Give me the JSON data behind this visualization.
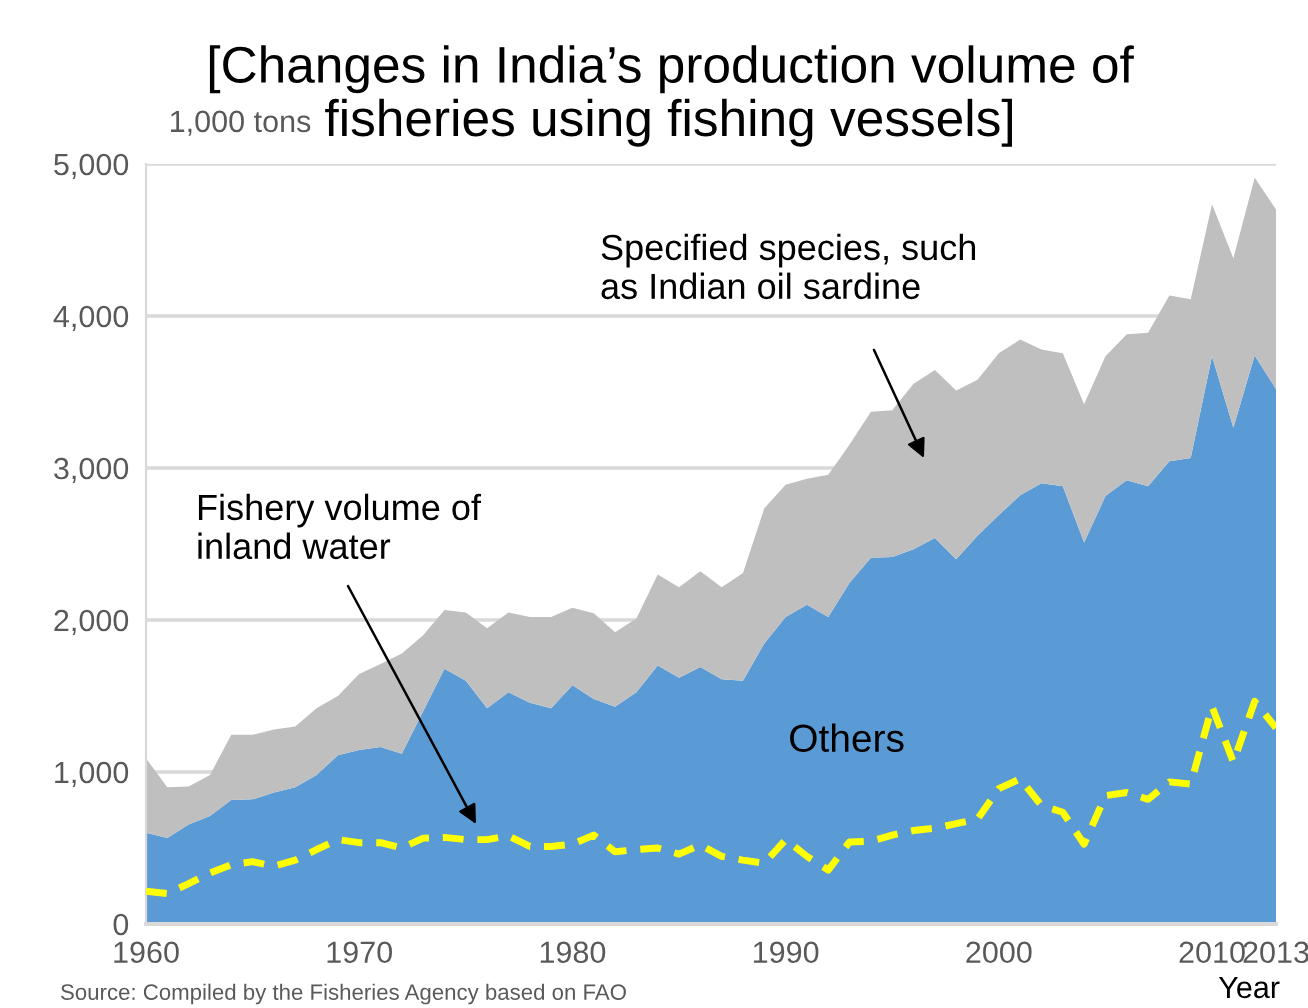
{
  "chart_data": {
    "type": "area",
    "title": "[Changes in India’s production volume of\nfisheries using fishing vessels]",
    "ylabel": "1,000 tons",
    "xlabel": "Year",
    "stacked": true,
    "x": [
      1960,
      1961,
      1962,
      1963,
      1964,
      1965,
      1966,
      1967,
      1968,
      1969,
      1970,
      1971,
      1972,
      1973,
      1974,
      1975,
      1976,
      1977,
      1978,
      1979,
      1980,
      1981,
      1982,
      1983,
      1984,
      1985,
      1986,
      1987,
      1988,
      1989,
      1990,
      1991,
      1992,
      1993,
      1994,
      1995,
      1996,
      1997,
      1998,
      1999,
      2000,
      2001,
      2002,
      2003,
      2004,
      2005,
      2006,
      2007,
      2008,
      2009,
      2010,
      2011,
      2012,
      2013
    ],
    "series": [
      {
        "name": "Others",
        "color": "#5b9bd5",
        "values": [
          600,
          565,
          655,
          710,
          815,
          820,
          865,
          900,
          980,
          1110,
          1145,
          1165,
          1120,
          1400,
          1680,
          1600,
          1420,
          1525,
          1455,
          1420,
          1570,
          1480,
          1430,
          1525,
          1700,
          1620,
          1690,
          1610,
          1600,
          1845,
          2020,
          2100,
          2020,
          2245,
          2410,
          2415,
          2465,
          2540,
          2400,
          2555,
          2690,
          2820,
          2900,
          2880,
          2510,
          2815,
          2920,
          2880,
          3045,
          3065,
          3735,
          3265,
          3740,
          3520
        ]
      },
      {
        "color": "#bfbfbf",
        "values": [
          490,
          335,
          250,
          270,
          430,
          425,
          415,
          400,
          440,
          390,
          500,
          545,
          660,
          500,
          385,
          450,
          525,
          525,
          565,
          600,
          510,
          565,
          490,
          485,
          600,
          595,
          630,
          605,
          710,
          890,
          870,
          830,
          935,
          910,
          960,
          965,
          1090,
          1105,
          1110,
          1025,
          1065,
          1025,
          880,
          875,
          910,
          920,
          960,
          1010,
          1090,
          1045,
          1000,
          1115,
          1170,
          1180
        ]
      },
      {
        "type": "line",
        "color": "#ffff00",
        "line_style": "dashed",
        "values": [
          215,
          200,
          265,
          335,
          390,
          410,
          380,
          420,
          490,
          555,
          535,
          535,
          500,
          565,
          570,
          555,
          555,
          580,
          510,
          510,
          525,
          585,
          475,
          490,
          500,
          460,
          520,
          445,
          420,
          400,
          555,
          445,
          355,
          540,
          545,
          585,
          615,
          630,
          660,
          690,
          890,
          955,
          780,
          735,
          525,
          845,
          865,
          820,
          935,
          920,
          1430,
          1065,
          1465,
          1290
        ]
      }
    ],
    "xlim": [
      1960,
      2013
    ],
    "xticks": [
      1960,
      1970,
      1980,
      1990,
      2000,
      2010,
      2013
    ],
    "ylim": [
      0,
      5000
    ],
    "yticks": [
      {
        "value": 0,
        "label": "0"
      },
      {
        "value": 1000,
        "label": "1,000"
      },
      {
        "value": 2000,
        "label": "2,000"
      },
      {
        "value": 3000,
        "label": "3,000"
      },
      {
        "value": 4000,
        "label": "4,000"
      },
      {
        "value": 5000,
        "label": "5,000"
      }
    ],
    "grid": "y",
    "legend": false,
    "annotations": [
      "Specified species, such\nas Indian oil sardine",
      "Fishery volume of\ninland water",
      "Source: Compiled by the Fisheries Agency based on FAO"
    ]
  }
}
